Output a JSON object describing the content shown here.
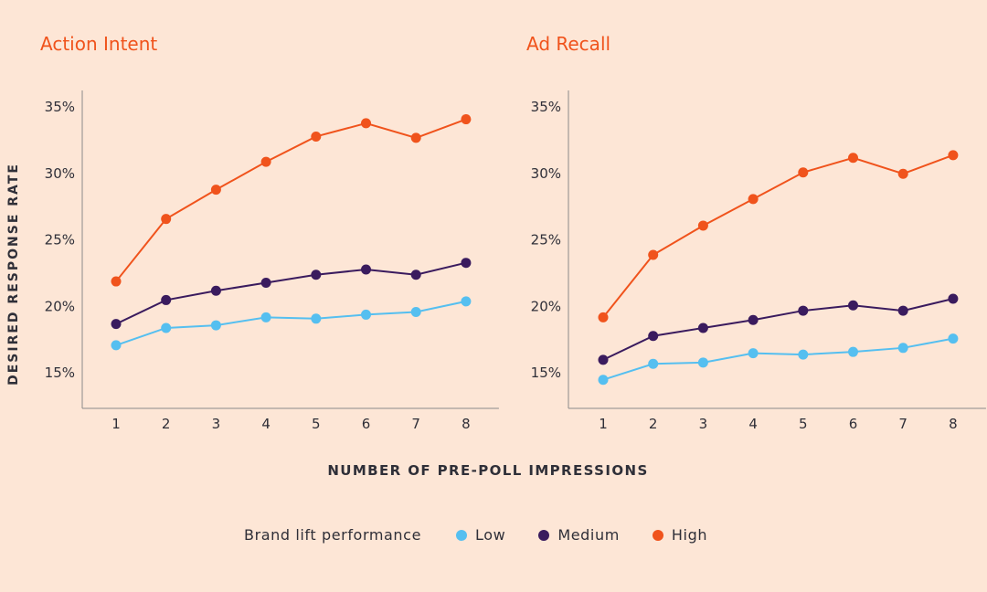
{
  "chart_data": [
    {
      "type": "line",
      "title": "Action Intent",
      "ylabel": "DESIRED RESPONSE RATE",
      "xlabel": "NUMBER OF PRE-POLL IMPRESSIONS",
      "x": [
        1,
        2,
        3,
        4,
        5,
        6,
        7,
        8
      ],
      "yticks": [
        "15%",
        "20%",
        "25%",
        "30%",
        "35%"
      ],
      "ylim": [
        12.5,
        36.5
      ],
      "grid": false,
      "series": [
        {
          "name": "Low",
          "values": [
            17.0,
            18.3,
            18.5,
            19.1,
            19.0,
            19.3,
            19.5,
            20.3
          ]
        },
        {
          "name": "Medium",
          "values": [
            18.6,
            20.4,
            21.1,
            21.7,
            22.3,
            22.7,
            22.3,
            23.2
          ]
        },
        {
          "name": "High",
          "values": [
            21.8,
            26.5,
            28.7,
            30.8,
            32.7,
            33.7,
            32.6,
            34.0
          ]
        }
      ]
    },
    {
      "type": "line",
      "title": "Ad Recall",
      "ylabel": "",
      "xlabel": "NUMBER OF PRE-POLL IMPRESSIONS",
      "x": [
        1,
        2,
        3,
        4,
        5,
        6,
        7,
        8
      ],
      "yticks": [
        "15%",
        "20%",
        "25%",
        "30%",
        "35%"
      ],
      "ylim": [
        12.5,
        36.5
      ],
      "grid": false,
      "series": [
        {
          "name": "Low",
          "values": [
            14.4,
            15.6,
            15.7,
            16.4,
            16.3,
            16.5,
            16.8,
            17.5
          ]
        },
        {
          "name": "Medium",
          "values": [
            15.9,
            17.7,
            18.3,
            18.9,
            19.6,
            20.0,
            19.6,
            20.5
          ]
        },
        {
          "name": "High",
          "values": [
            19.1,
            23.8,
            26.0,
            28.0,
            30.0,
            31.1,
            29.9,
            31.3
          ]
        }
      ]
    }
  ],
  "legend": {
    "title": "Brand lift performance",
    "items": [
      {
        "label": "Low",
        "color": "#55bff0"
      },
      {
        "label": "Medium",
        "color": "#3a1b5e"
      },
      {
        "label": "High",
        "color": "#f0531c"
      }
    ]
  },
  "colors": {
    "Low": "#55bff0",
    "Medium": "#3a1b5e",
    "High": "#f0531c",
    "axis": "#8a8a8a",
    "text": "#2f2f38"
  }
}
